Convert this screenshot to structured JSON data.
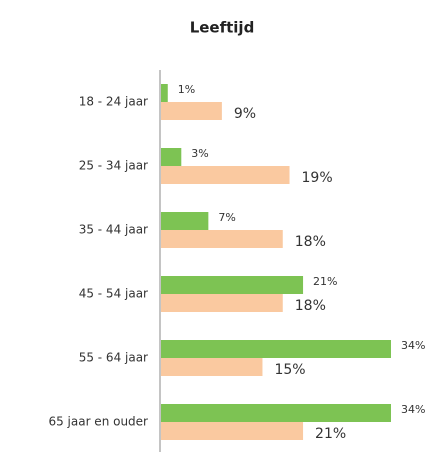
{
  "chart_data": {
    "type": "bar",
    "orientation": "horizontal",
    "title": "Leeftijd",
    "categories": [
      "18 - 24 jaar",
      "25 - 34 jaar",
      "35 - 44 jaar",
      "45 - 54 jaar",
      "55 - 64 jaar",
      "65 jaar en ouder"
    ],
    "series": [
      {
        "color": "#7dc353",
        "values": [
          1,
          3,
          7,
          21,
          34,
          34
        ],
        "value_labels": [
          "1%",
          "3%",
          "7%",
          "21%",
          "34%",
          "34%"
        ]
      },
      {
        "color": "#fac9a0",
        "values": [
          9,
          19,
          18,
          18,
          15,
          21
        ],
        "value_labels": [
          "9%",
          "19%",
          "18%",
          "18%",
          "15%",
          "21%"
        ]
      }
    ]
  }
}
